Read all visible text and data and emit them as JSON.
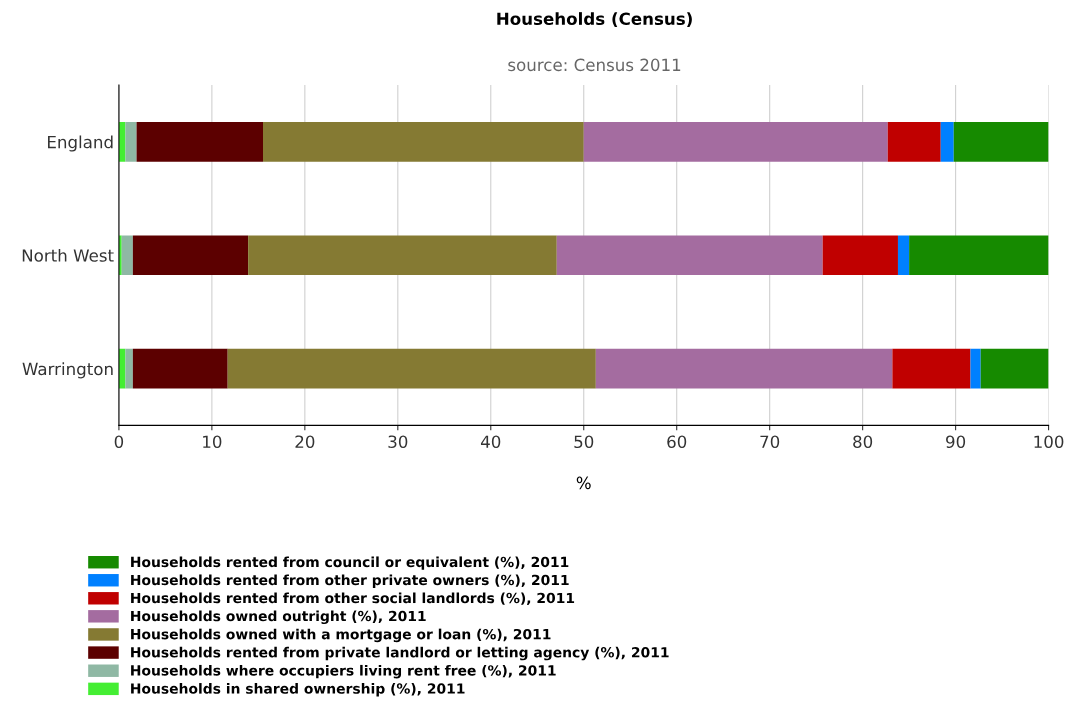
{
  "chart_data": {
    "type": "bar",
    "orientation": "horizontal",
    "stacked": true,
    "title": "Households (Census)",
    "subtitle": "source: Census 2011",
    "xlabel": "%",
    "categories": [
      "England",
      "North West",
      "Warrington"
    ],
    "series": [
      {
        "name": "Households in shared ownership (%), 2011",
        "color": "#44ee33",
        "values": [
          0.7,
          0.3,
          0.7
        ]
      },
      {
        "name": "Households where occupiers living rent free (%), 2011",
        "color": "#8fb8a4",
        "values": [
          1.2,
          1.2,
          0.8
        ]
      },
      {
        "name": "Households rented from private landlord or letting agency (%), 2011",
        "color": "#5c0000",
        "values": [
          13.6,
          12.4,
          10.2
        ]
      },
      {
        "name": "Households owned with a mortgage or loan (%), 2011",
        "color": "#857a33",
        "values": [
          34.5,
          33.2,
          39.6
        ]
      },
      {
        "name": "Households owned outright (%), 2011",
        "color": "#a46ca0",
        "values": [
          32.7,
          28.6,
          31.9
        ]
      },
      {
        "name": "Households rented from other social landlords (%), 2011",
        "color": "#c00000",
        "values": [
          5.7,
          8.1,
          8.4
        ]
      },
      {
        "name": "Households rented from other private owners (%), 2011",
        "color": "#0080ff",
        "values": [
          1.4,
          1.2,
          1.1
        ]
      },
      {
        "name": "Households rented from council or equivalent (%), 2011",
        "color": "#168a00",
        "values": [
          10.2,
          15.0,
          7.3
        ]
      }
    ],
    "xlim": [
      0,
      100
    ],
    "xticks": [
      0,
      10,
      20,
      30,
      40,
      50,
      60,
      70,
      80,
      90,
      100
    ],
    "grid": "x",
    "legend": "bottom"
  }
}
